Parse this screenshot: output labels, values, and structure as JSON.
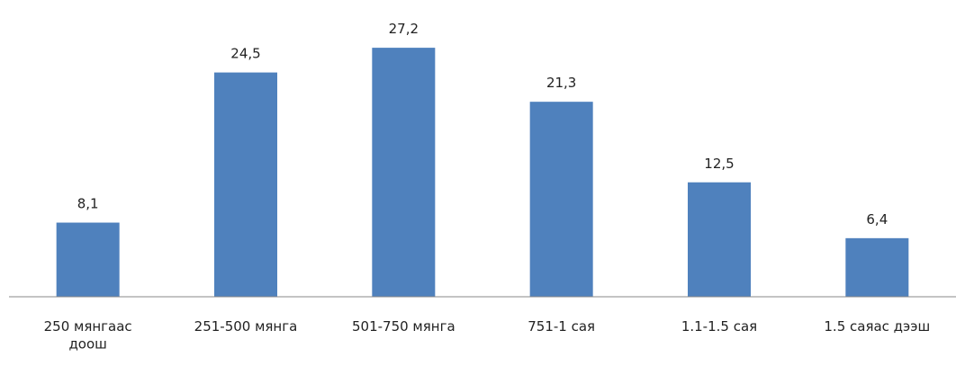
{
  "chart_data": {
    "type": "bar",
    "categories": [
      "250 мянгаас доош",
      "251-500 мянга",
      "501-750 мянга",
      "751-1 сая",
      "1.1-1.5 сая",
      "1.5 саяас дээш"
    ],
    "values": [
      8.1,
      24.5,
      27.2,
      21.3,
      12.5,
      6.4
    ],
    "value_labels": [
      "8,1",
      "24,5",
      "27,2",
      "21,3",
      "12,5",
      "6,4"
    ],
    "color": "#4f81bd",
    "ylim": [
      0,
      30
    ]
  }
}
